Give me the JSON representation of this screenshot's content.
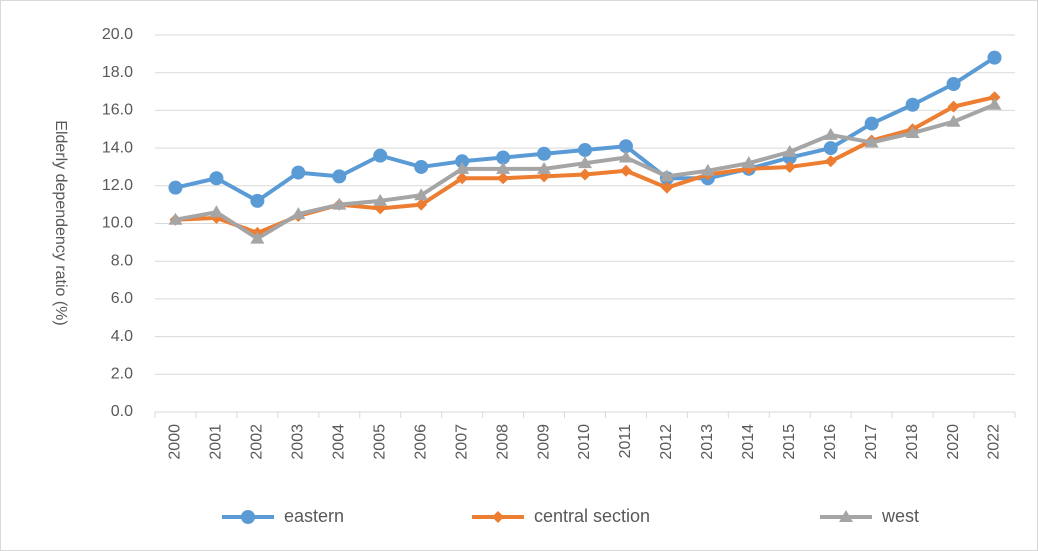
{
  "chart_data": {
    "type": "line",
    "y_label": "Elderly dependency ratio (%)",
    "categories": [
      "2000",
      "2001",
      "2002",
      "2003",
      "2004",
      "2005",
      "2006",
      "2007",
      "2008",
      "2009",
      "2010",
      "2011",
      "2012",
      "2013",
      "2014",
      "2015",
      "2016",
      "2017",
      "2018",
      "2020",
      "2022"
    ],
    "series": [
      {
        "name": "eastern",
        "color": "#5b9bd5",
        "marker": "circle",
        "values": [
          11.9,
          12.4,
          11.2,
          12.7,
          12.5,
          13.6,
          13.0,
          13.3,
          13.5,
          13.7,
          13.9,
          14.1,
          12.4,
          12.4,
          12.9,
          13.5,
          14.0,
          15.3,
          16.3,
          17.4,
          18.8
        ]
      },
      {
        "name": "central section",
        "color": "#ed7d31",
        "marker": "diamond",
        "values": [
          10.2,
          10.3,
          9.5,
          10.4,
          11.0,
          10.8,
          11.0,
          12.4,
          12.4,
          12.5,
          12.6,
          12.8,
          11.9,
          12.6,
          12.9,
          13.0,
          13.3,
          14.4,
          15.0,
          16.2,
          16.7
        ]
      },
      {
        "name": "west",
        "color": "#a5a5a5",
        "marker": "triangle",
        "values": [
          10.2,
          10.6,
          9.2,
          10.5,
          11.0,
          11.2,
          11.5,
          12.9,
          12.9,
          12.9,
          13.2,
          13.5,
          12.5,
          12.8,
          13.2,
          13.8,
          14.7,
          14.3,
          14.8,
          15.4,
          16.3
        ]
      }
    ],
    "ylim": [
      0,
      20
    ],
    "yticks": [
      {
        "value": 0,
        "label": "0.0"
      },
      {
        "value": 2,
        "label": "2.0"
      },
      {
        "value": 4,
        "label": "4.0"
      },
      {
        "value": 6,
        "label": "6.0"
      },
      {
        "value": 8,
        "label": "8.0"
      },
      {
        "value": 10,
        "label": "10.0"
      },
      {
        "value": 12,
        "label": "12.0"
      },
      {
        "value": 14,
        "label": "14.0"
      },
      {
        "value": 16,
        "label": "16.0"
      },
      {
        "value": 18,
        "label": "18.0"
      },
      {
        "value": 20,
        "label": "20.0"
      }
    ],
    "grid": true,
    "legend": "bottom"
  }
}
